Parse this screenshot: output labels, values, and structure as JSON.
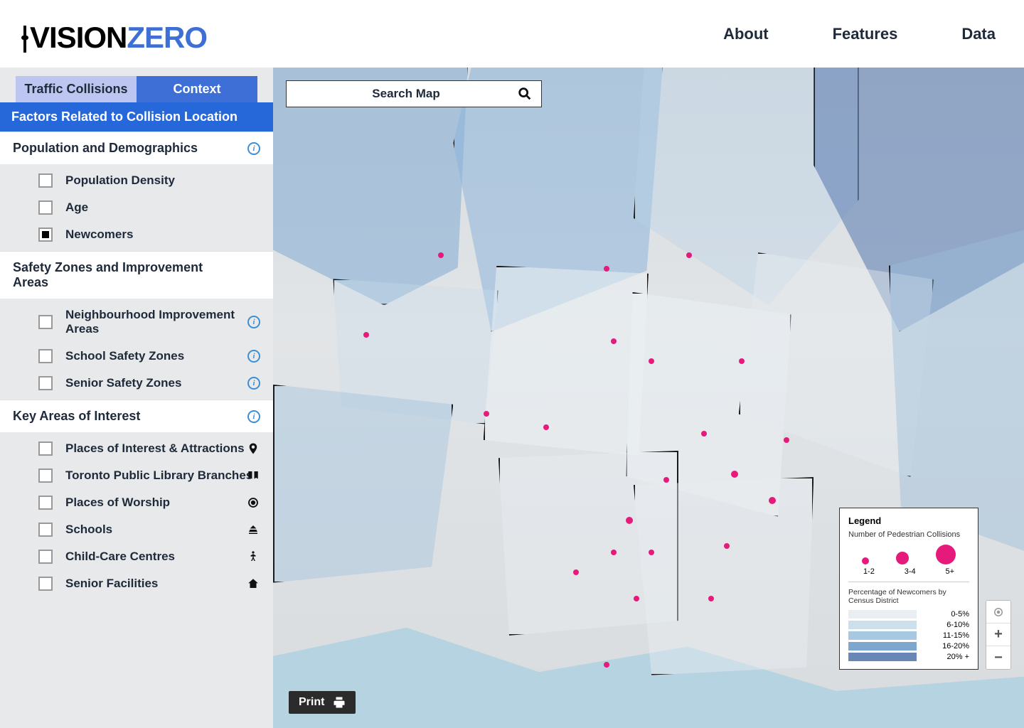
{
  "header": {
    "logo_vision": "VISION",
    "logo_zero": "ZERO",
    "nav": {
      "about": "About",
      "features": "Features",
      "data": "Data"
    }
  },
  "sidebar": {
    "tabs": {
      "collisions": "Traffic Collisions",
      "context": "Context"
    },
    "active_tab": "context",
    "banner": "Factors Related to Collision Location",
    "sections": [
      {
        "title": "Population and Demographics",
        "has_info": true,
        "items": [
          {
            "label": "Population Density",
            "checked": false
          },
          {
            "label": "Age",
            "checked": false
          },
          {
            "label": "Newcomers",
            "checked": true
          }
        ]
      },
      {
        "title": "Safety Zones and Improvement Areas",
        "has_info": false,
        "items": [
          {
            "label": "Neighbourhood Improvement Areas",
            "checked": false,
            "info": true
          },
          {
            "label": "School Safety Zones",
            "checked": false,
            "info": true
          },
          {
            "label": "Senior Safety Zones",
            "checked": false,
            "info": true
          }
        ]
      },
      {
        "title": "Key Areas of Interest",
        "has_info": true,
        "items": [
          {
            "label": "Places of Interest & Attractions",
            "checked": false,
            "icon": "pin"
          },
          {
            "label": "Toronto Public Library Branches",
            "checked": false,
            "icon": "book"
          },
          {
            "label": "Places of Worship",
            "checked": false,
            "icon": "target"
          },
          {
            "label": "Schools",
            "checked": false,
            "icon": "school"
          },
          {
            "label": "Child-Care Centres",
            "checked": false,
            "icon": "child"
          },
          {
            "label": "Senior Facilities",
            "checked": false,
            "icon": "home"
          }
        ]
      }
    ]
  },
  "map": {
    "search_placeholder": "Search Map",
    "print_label": "Print",
    "markers": [
      {
        "x": 12,
        "y": 40,
        "size": 8
      },
      {
        "x": 22,
        "y": 28,
        "size": 8
      },
      {
        "x": 28,
        "y": 52,
        "size": 8
      },
      {
        "x": 36,
        "y": 54,
        "size": 8
      },
      {
        "x": 44,
        "y": 30,
        "size": 8
      },
      {
        "x": 47,
        "y": 68,
        "size": 10
      },
      {
        "x": 50,
        "y": 44,
        "size": 8
      },
      {
        "x": 55,
        "y": 28,
        "size": 8
      },
      {
        "x": 60,
        "y": 72,
        "size": 8
      },
      {
        "x": 62,
        "y": 44,
        "size": 8
      },
      {
        "x": 61,
        "y": 61,
        "size": 10
      },
      {
        "x": 58,
        "y": 80,
        "size": 8
      },
      {
        "x": 48,
        "y": 80,
        "size": 8
      },
      {
        "x": 44,
        "y": 90,
        "size": 8
      },
      {
        "x": 40,
        "y": 76,
        "size": 8
      },
      {
        "x": 66,
        "y": 65,
        "size": 10
      },
      {
        "x": 68,
        "y": 56,
        "size": 8
      },
      {
        "x": 52,
        "y": 62,
        "size": 8
      },
      {
        "x": 57,
        "y": 55,
        "size": 8
      },
      {
        "x": 50,
        "y": 73,
        "size": 8
      },
      {
        "x": 45,
        "y": 73,
        "size": 8
      },
      {
        "x": 45,
        "y": 41,
        "size": 8
      }
    ],
    "legend": {
      "title": "Legend",
      "collisions_label": "Number of Pedestrian Collisions",
      "collision_bins": [
        {
          "label": "1-2",
          "radius": 5
        },
        {
          "label": "3-4",
          "radius": 9
        },
        {
          "label": "5+",
          "radius": 14
        }
      ],
      "marker_color": "#e61a7a",
      "newcomers_label": "Percentage of Newcomers by Census District",
      "choropleth_bins": [
        {
          "label": "0-5%",
          "color": "#e8eef2"
        },
        {
          "label": "6-10%",
          "color": "#cddfeb"
        },
        {
          "label": "11-15%",
          "color": "#a6c8e0"
        },
        {
          "label": "16-20%",
          "color": "#7ea7ce"
        },
        {
          "label": "20% +",
          "color": "#6886b6"
        }
      ]
    }
  }
}
